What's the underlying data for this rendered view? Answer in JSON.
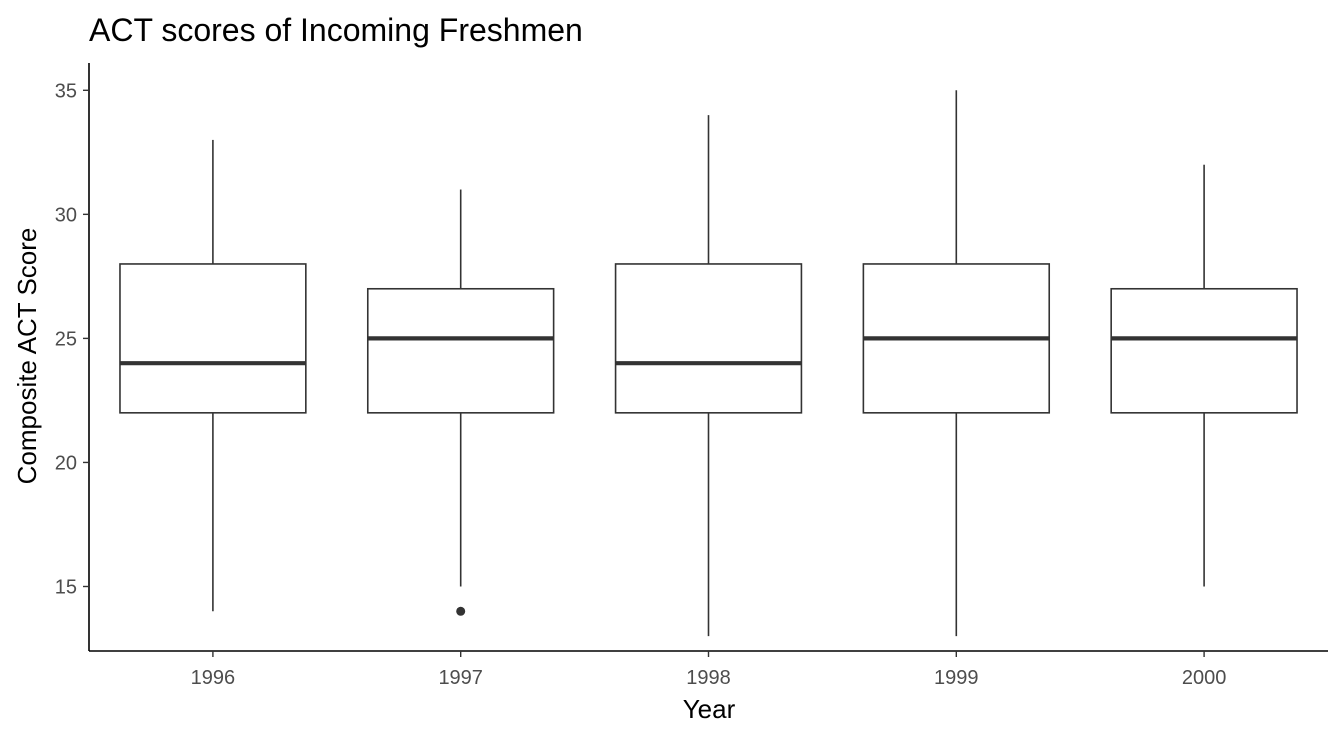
{
  "chart_data": {
    "type": "box",
    "title": "ACT scores of Incoming Freshmen",
    "xlabel": "Year",
    "ylabel": "Composite ACT Score",
    "categories": [
      "1996",
      "1997",
      "1998",
      "1999",
      "2000"
    ],
    "yticks": [
      15,
      20,
      25,
      30,
      35
    ],
    "ylim": [
      12.4,
      36.1
    ],
    "grid": false,
    "boxes": [
      {
        "category": "1996",
        "lower_whisker": 14,
        "q1": 22,
        "median": 24,
        "q3": 28,
        "upper_whisker": 33,
        "outliers": []
      },
      {
        "category": "1997",
        "lower_whisker": 15,
        "q1": 22,
        "median": 25,
        "q3": 27,
        "upper_whisker": 31,
        "outliers": [
          14
        ]
      },
      {
        "category": "1998",
        "lower_whisker": 13,
        "q1": 22,
        "median": 24,
        "q3": 28,
        "upper_whisker": 34,
        "outliers": []
      },
      {
        "category": "1999",
        "lower_whisker": 13,
        "q1": 22,
        "median": 25,
        "q3": 28,
        "upper_whisker": 35,
        "outliers": []
      },
      {
        "category": "2000",
        "lower_whisker": 15,
        "q1": 22,
        "median": 25,
        "q3": 27,
        "upper_whisker": 32,
        "outliers": []
      }
    ],
    "colors": {
      "box_line": "#333333",
      "axis": "#000000",
      "tick_text": "#4d4d4d",
      "fill": "#ffffff"
    }
  }
}
